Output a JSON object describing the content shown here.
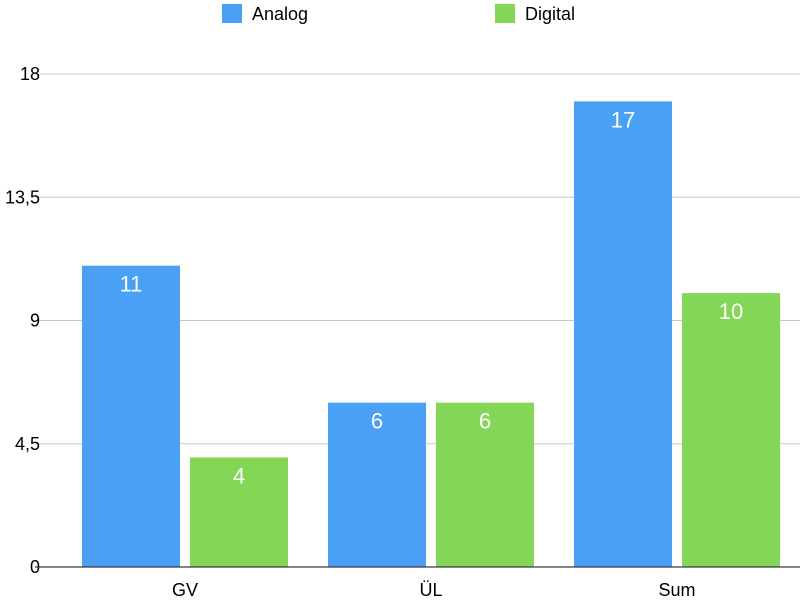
{
  "chart_data": {
    "type": "bar",
    "categories": [
      "GV",
      "ÜL",
      "Sum"
    ],
    "series": [
      {
        "name": "Analog",
        "values": [
          11,
          6,
          17
        ],
        "color": "#4aa0f5"
      },
      {
        "name": "Digital",
        "values": [
          4,
          6,
          10
        ],
        "color": "#84d656"
      }
    ],
    "ylim": [
      0,
      18
    ],
    "yticks": [
      0,
      4.5,
      9,
      13.5,
      18
    ],
    "ytick_labels": [
      "0",
      "4,5",
      "9",
      "13,5",
      "18"
    ],
    "grid": true,
    "legend_position": "top-center",
    "data_labels": true
  }
}
